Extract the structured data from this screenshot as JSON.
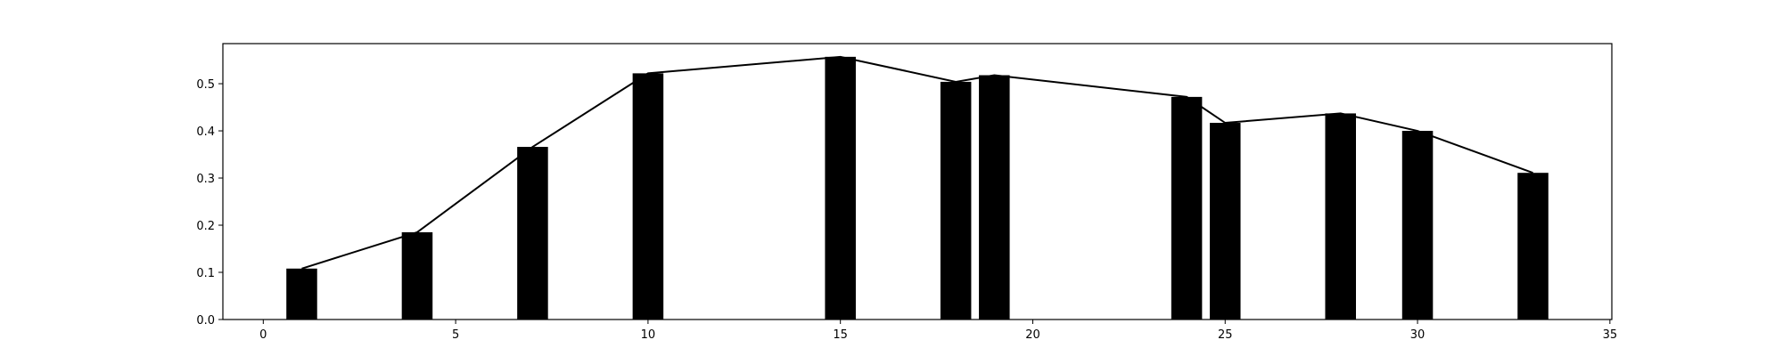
{
  "chart_data": {
    "type": "bar",
    "title": "",
    "xlabel": "",
    "ylabel": "",
    "x": [
      1,
      4,
      7,
      10,
      15,
      18,
      19,
      24,
      25,
      28,
      30,
      33
    ],
    "values": [
      0.108,
      0.185,
      0.366,
      0.522,
      0.557,
      0.504,
      0.518,
      0.472,
      0.417,
      0.437,
      0.4,
      0.311
    ],
    "bar_width": 0.8,
    "line_overlay": true,
    "xlim": [
      -1.05,
      35.05
    ],
    "ylim": [
      0,
      0.585
    ],
    "xticks": [
      0,
      5,
      10,
      15,
      20,
      25,
      30,
      35
    ],
    "yticks": [
      0.0,
      0.1,
      0.2,
      0.3,
      0.4,
      0.5
    ],
    "xtick_labels": [
      "0",
      "5",
      "10",
      "15",
      "20",
      "25",
      "30",
      "35"
    ],
    "ytick_labels": [
      "0.0",
      "0.1",
      "0.2",
      "0.3",
      "0.4",
      "0.5"
    ],
    "grid": false,
    "colors": {
      "bars": "#000000",
      "line": "#000000",
      "axes": "#000000"
    }
  }
}
